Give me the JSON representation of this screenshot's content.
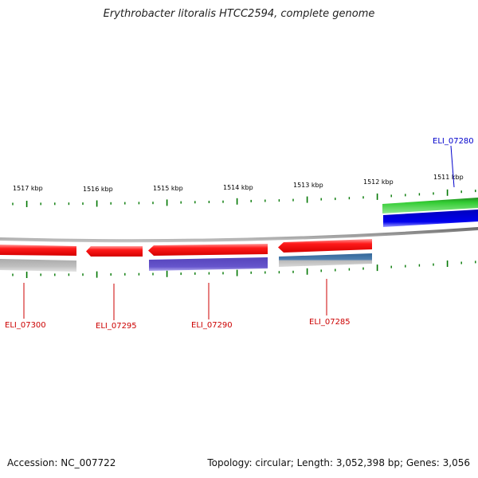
{
  "title": "Erythrobacter litoralis HTCC2594, complete genome",
  "footer": {
    "accession": "Accession: NC_007722",
    "topology": "Topology: circular; Length: 3,052,398 bp; Genes: 3,056"
  },
  "colors": {
    "tick": "#007700",
    "backbone": "#888888",
    "label_red": "#cc0000",
    "label_blue": "#0000cc"
  },
  "kbp_labels": [
    "1517 kbp",
    "1516 kbp",
    "1515 kbp",
    "1514 kbp",
    "1513 kbp",
    "1512 kbp",
    "1511 kbp"
  ],
  "gene_labels": [
    {
      "text": "ELI_07300",
      "color": "#cc0000"
    },
    {
      "text": "ELI_07295",
      "color": "#cc0000"
    },
    {
      "text": "ELI_07290",
      "color": "#cc0000"
    },
    {
      "text": "ELI_07285",
      "color": "#cc0000"
    },
    {
      "text": "ELI_07280",
      "color": "#0000cc"
    }
  ],
  "feature_colors": {
    "cds_red": "#ff1a1a",
    "cds_green": "#33cc33",
    "cds_blue": "#0000ee",
    "cds_purple": "#6655cc",
    "cds_steel": "#4477aa",
    "gray": "#b8b8b8"
  }
}
